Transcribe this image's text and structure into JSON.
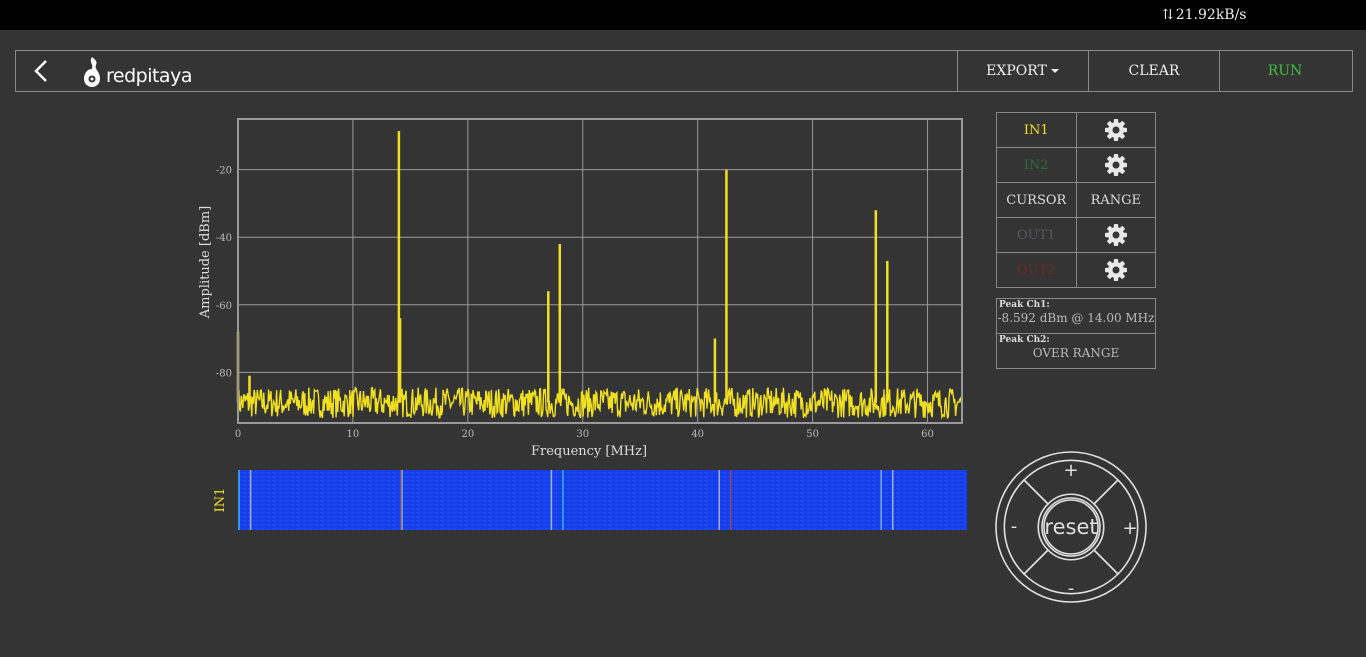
{
  "status_bar": {
    "net_speed": "21.92kB/s"
  },
  "nav": {
    "brand": "redpitaya",
    "export_label": "EXPORT",
    "clear_label": "CLEAR",
    "run_label": "RUN",
    "run_color": "#3fbf3f"
  },
  "channels": [
    {
      "label": "IN1",
      "color": "#f0e020",
      "has_settings": true
    },
    {
      "label": "IN2",
      "color": "#2f6b3a",
      "has_settings": true
    },
    {
      "label": "CURSOR",
      "color": "#dddddd",
      "has_settings": false,
      "pair": "RANGE"
    },
    {
      "label": "OUT1",
      "color": "#55575e",
      "has_settings": true
    },
    {
      "label": "OUT2",
      "color": "#6b2a2a",
      "has_settings": true
    }
  ],
  "peaks": {
    "ch1_label": "Peak  Ch1:",
    "ch1_value": "-8.592  dBm @ 14.00  MHz",
    "ch2_label": "Peak  Ch2:",
    "ch2_value": "OVER RANGE"
  },
  "waterfall": {
    "channel_label": "IN1"
  },
  "controls": {
    "reset_label": "reset",
    "up_label": "+",
    "down_label": "-",
    "left_label": "-",
    "right_label": "+"
  },
  "chart_data": {
    "type": "line",
    "xlabel": "Frequency   [MHz]",
    "ylabel": "Amplitude  [dBm]",
    "xlim": [
      0,
      63
    ],
    "ylim": [
      -95,
      -5
    ],
    "xticks": [
      0,
      10,
      20,
      30,
      40,
      50,
      60
    ],
    "yticks": [
      -20,
      -40,
      -60,
      -80
    ],
    "grid": true,
    "series": [
      {
        "color": "#f0e020",
        "noise_floor": -89,
        "peaks": [
          {
            "x": 0.0,
            "y": -68
          },
          {
            "x": 1.0,
            "y": -81
          },
          {
            "x": 14.0,
            "y": -8.6
          },
          {
            "x": 14.1,
            "y": -64
          },
          {
            "x": 27.0,
            "y": -56
          },
          {
            "x": 28.0,
            "y": -42
          },
          {
            "x": 41.5,
            "y": -70
          },
          {
            "x": 42.5,
            "y": -20
          },
          {
            "x": 55.5,
            "y": -32
          },
          {
            "x": 56.5,
            "y": -47
          }
        ]
      }
    ]
  }
}
